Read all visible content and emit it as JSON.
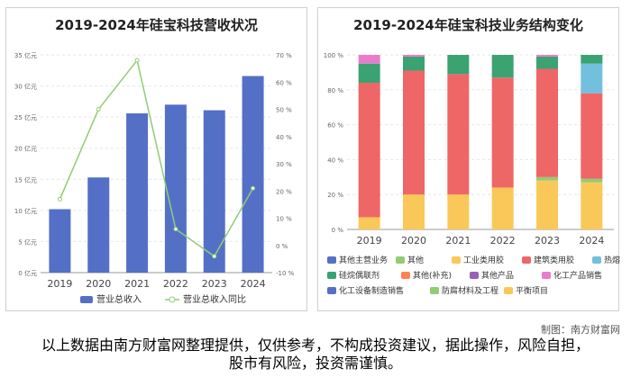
{
  "charts": {
    "left_title": "2019-2024年硅宝科技营收状况",
    "right_title": "2019-2024年硅宝科技业务结构变化"
  },
  "chart_data": [
    {
      "type": "bar",
      "title": "2019-2024年硅宝科技营收状况",
      "categories": [
        "2019",
        "2020",
        "2021",
        "2022",
        "2023",
        "2024"
      ],
      "series": [
        {
          "name": "营业总收入",
          "values": [
            10.2,
            15.3,
            25.6,
            27.0,
            26.1,
            31.6
          ],
          "color": "#5470c6"
        },
        {
          "name": "营业总收入同比",
          "values": [
            17,
            50,
            68,
            6,
            -4,
            21
          ],
          "color": "#91cc75"
        }
      ],
      "ylim": [
        0,
        35
      ],
      "y2lim": [
        -10,
        70
      ],
      "yticks": [
        "0 亿元",
        "5 亿元",
        "10 亿元",
        "15 亿元",
        "20 亿元",
        "25 亿元",
        "30 亿元",
        "35 亿元"
      ],
      "y2ticks": [
        "-10 %",
        "0 %",
        "10 %",
        "20 %",
        "30 %",
        "40 %",
        "50 %",
        "60 %",
        "70 %"
      ],
      "legend": "bottom",
      "grid": true
    },
    {
      "type": "bar",
      "stacked": true,
      "title": "2019-2024年硅宝科技业务结构变化",
      "categories": [
        "2019",
        "2020",
        "2021",
        "2022",
        "2023",
        "2024"
      ],
      "ylim": [
        0,
        100
      ],
      "yticks": [
        "0 %",
        "20 %",
        "40 %",
        "60 %",
        "80 %",
        "100 %"
      ],
      "series": [
        {
          "name": "工业类用胶",
          "values": [
            7,
            20,
            20,
            24,
            28,
            27
          ],
          "color": "#fac858"
        },
        {
          "name": "其他",
          "values": [
            0,
            0,
            0,
            0,
            2,
            2
          ],
          "color": "#91cc75"
        },
        {
          "name": "建筑类用胶",
          "values": [
            77,
            71,
            69,
            63,
            62,
            49
          ],
          "color": "#ee6666"
        },
        {
          "name": "热熔胶",
          "values": [
            0,
            0,
            0,
            0,
            0,
            17
          ],
          "color": "#73c0de"
        },
        {
          "name": "硅烷偶联剂",
          "values": [
            11,
            8,
            11,
            13,
            7,
            5
          ],
          "color": "#3ba272"
        },
        {
          "name": "化工产品销售",
          "values": [
            5,
            1,
            0,
            0,
            1,
            0
          ],
          "color": "#ea7ccc"
        }
      ],
      "legend_entries": [
        {
          "name": "其他主营业务",
          "color": "#5470c6"
        },
        {
          "name": "其他",
          "color": "#91cc75"
        },
        {
          "name": "工业类用胶",
          "color": "#fac858"
        },
        {
          "name": "建筑类用胶",
          "color": "#ee6666"
        },
        {
          "name": "热熔胶",
          "color": "#73c0de"
        },
        {
          "name": "硅烷偶联剂",
          "color": "#3ba272"
        },
        {
          "name": "其他(补充)",
          "color": "#fc8452"
        },
        {
          "name": "其他产品",
          "color": "#9a60b4"
        },
        {
          "name": "化工产品销售",
          "color": "#ea7ccc"
        },
        {
          "name": "化工设备制造销售",
          "color": "#5470c6"
        },
        {
          "name": "防腐材料及工程",
          "color": "#91cc75"
        },
        {
          "name": "平衡项目",
          "color": "#fac858"
        }
      ],
      "legend": "bottom",
      "grid": true
    }
  ],
  "footer": {
    "credit": "制图：南方财富网",
    "disclaimer": "以上数据由南方财富网整理提供，仅供参考，不构成投资建议，据此操作，风险自担，股市有风险，投资需谨慎。"
  }
}
